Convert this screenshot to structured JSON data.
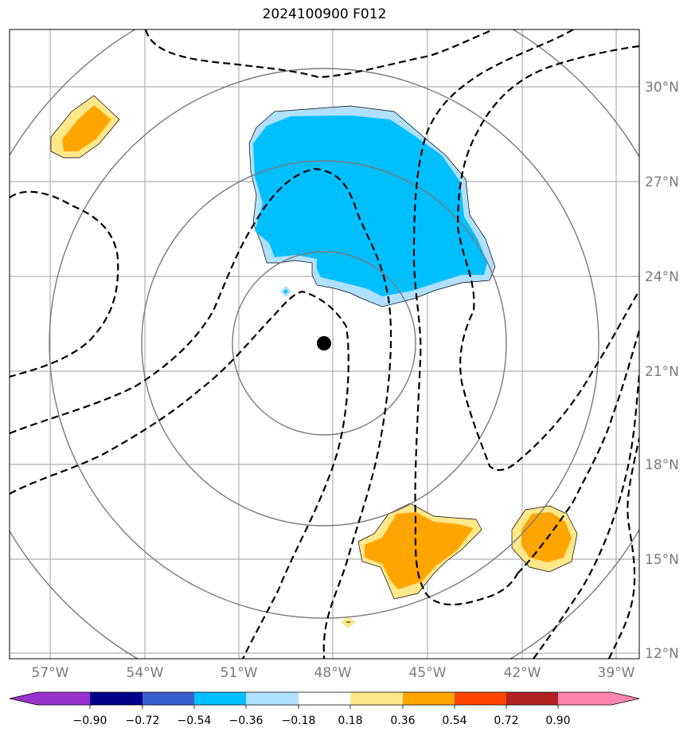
{
  "title": "2024100900 F012",
  "lat_labels": [
    "30°N",
    "27°N",
    "24°N",
    "21°N",
    "18°N",
    "15°N",
    "12°N"
  ],
  "lon_labels": [
    "57°W",
    "54°W",
    "51°W",
    "48°W",
    "45°W",
    "42°W",
    "39°W"
  ],
  "colorbar": {
    "tick_labels": [
      "−0.90",
      "−0.72",
      "−0.54",
      "−0.36",
      "−0.18",
      "0.18",
      "0.36",
      "0.54",
      "0.72",
      "0.90"
    ],
    "colors": [
      "#9932cc",
      "#00008b",
      "#3a5fcd",
      "#00bfff",
      "#b0e0ff",
      "#ffffff",
      "#ffe88a",
      "#ffa500",
      "#ff4500",
      "#b22222",
      "#ff85b0"
    ],
    "extend": "both"
  },
  "map_extent": {
    "lon": [
      -58.3,
      -38.3
    ],
    "lat": [
      11.9,
      31.8
    ]
  },
  "storm_center": {
    "lon": -48.1,
    "lat": 21.8
  },
  "range_rings": "concentric circles around storm center",
  "contour_style": {
    "dashed": "#000000",
    "fill_negative": "#00bfff",
    "fill_positive": "#ffa500"
  }
}
